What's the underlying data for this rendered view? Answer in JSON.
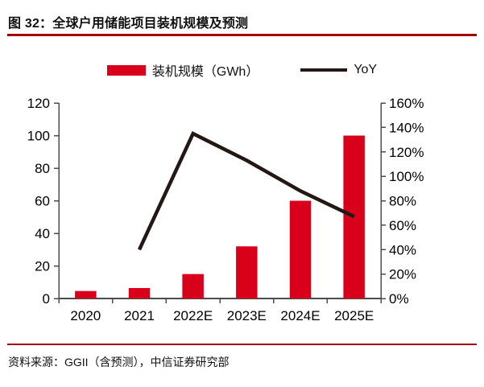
{
  "figure": {
    "title": "图 32：全球户用储能项目装机规模及预测",
    "source": "资料来源：GGII（含预测），中信证券研究部"
  },
  "legend": {
    "items": [
      {
        "label": "装机规模（GWh）",
        "marker": "bar-swatch"
      },
      {
        "label": "YoY",
        "marker": "line-swatch"
      }
    ]
  },
  "colors": {
    "bar_red": "#D9001B",
    "yoy_line": "#231815",
    "rule_red": "#A40000",
    "axis_gray": "#4D4D4D",
    "text_black": "#000000"
  },
  "chart_data": {
    "type": "bar",
    "subtype": "combo-bar-line-dual-axis",
    "title": "全球户用储能项目装机规模及预测",
    "categories": [
      "2020",
      "2021",
      "2022E",
      "2023E",
      "2024E",
      "2025E"
    ],
    "series": [
      {
        "name": "装机规模（GWh）",
        "type": "bar",
        "axis": "left",
        "unit": "GWh",
        "values": [
          4.6,
          6.4,
          15,
          32,
          60,
          100
        ]
      },
      {
        "name": "YoY",
        "type": "line",
        "axis": "right",
        "unit": "%",
        "values": [
          null,
          40,
          135,
          113,
          88,
          67
        ]
      }
    ],
    "left_axis": {
      "min": 0,
      "max": 120,
      "step": 20,
      "tick_labels": [
        "0",
        "20",
        "40",
        "60",
        "80",
        "100",
        "120"
      ]
    },
    "right_axis": {
      "min": 0,
      "max": 160,
      "step": 20,
      "tick_labels": [
        "0%",
        "20%",
        "40%",
        "60%",
        "80%",
        "100%",
        "120%",
        "140%",
        "160%"
      ]
    },
    "grid": false,
    "legend_position": "top-center"
  }
}
